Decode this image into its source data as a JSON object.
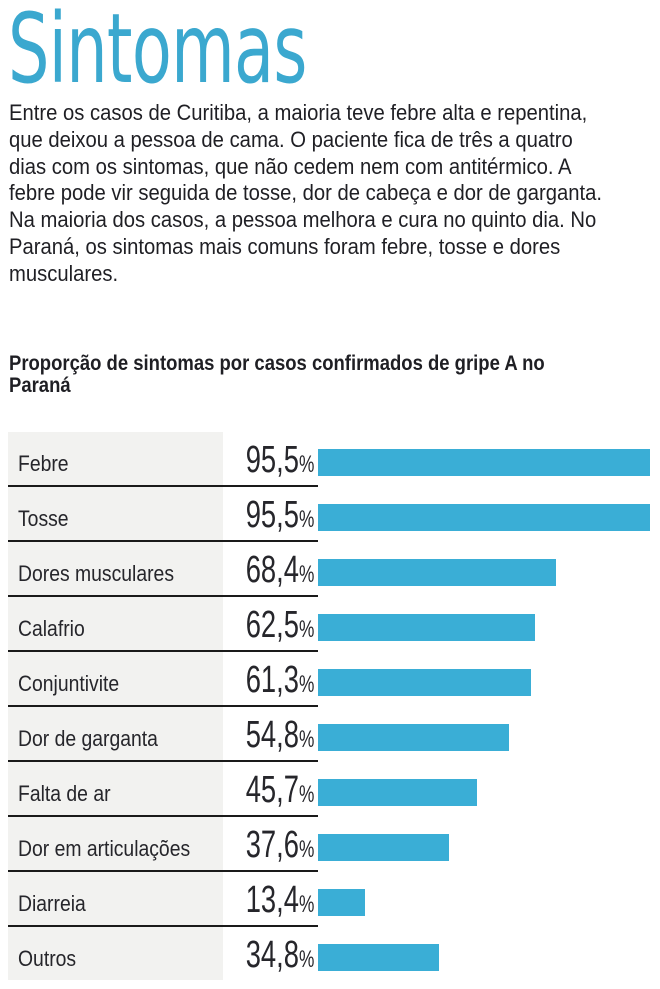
{
  "header": {
    "title": "Sintomas",
    "lead": "Entre os casos de Curitiba, a maioria teve febre alta e repentina, que deixou a pessoa de cama. O paciente fica de três a quatro dias com os sintomas, que não cedem nem com antitérmico. A febre pode vir seguida de tosse, dor de cabeça e dor de garganta. Na maioria dos casos, a pessoa melhora e cura no quinto dia. No Paraná, os sintomas mais comuns foram febre, tosse e dores musculares.",
    "lead_lines": [
      "Entre os casos de Curitiba, a maioria teve febre alta e repentina,",
      "que deixou a pessoa de cama. O paciente fica de três a quatro",
      "dias com os sintomas, que não cedem nem com antitérmico. A",
      "febre pode vir seguida de tosse, dor de cabeça e dor de garganta.",
      "Na maioria dos casos, a pessoa melhora e cura no quinto dia. No",
      "Paraná, os sintomas mais comuns foram febre, tosse e dores",
      "musculares."
    ]
  },
  "chart_title_lines": [
    "Proporção de sintomas por casos confirmados de gripe A no",
    "Paraná"
  ],
  "colors": {
    "title": "#3ba8cf",
    "bar": "#3aaed6",
    "label_bg": "#f2f2f0",
    "text": "#26262b",
    "divider": "#1a1a1a"
  },
  "rows": [
    {
      "label": "Febre",
      "value_num": "95,5",
      "pct": "%",
      "value": 95.5
    },
    {
      "label": "Tosse",
      "value_num": "95,5",
      "pct": "%",
      "value": 95.5
    },
    {
      "label": "Dores musculares",
      "value_num": "68,4",
      "pct": "%",
      "value": 68.4
    },
    {
      "label": "Calafrio",
      "value_num": "62,5",
      "pct": "%",
      "value": 62.5
    },
    {
      "label": "Conjuntivite",
      "value_num": "61,3",
      "pct": "%",
      "value": 61.3
    },
    {
      "label": "Dor de garganta",
      "value_num": "54,8",
      "pct": "%",
      "value": 54.8
    },
    {
      "label": "Falta de ar",
      "value_num": "45,7",
      "pct": "%",
      "value": 45.7
    },
    {
      "label": "Dor em articulações",
      "value_num": "37,6",
      "pct": "%",
      "value": 37.6
    },
    {
      "label": "Diarreia",
      "value_num": "13,4",
      "pct": "%",
      "value": 13.4
    },
    {
      "label": "Outros",
      "value_num": "34,8",
      "pct": "%",
      "value": 34.8
    }
  ],
  "chart_data": {
    "type": "bar",
    "orientation": "horizontal",
    "title": "Proporção de sintomas por casos confirmados de gripe A no Paraná",
    "xlabel": "",
    "ylabel": "",
    "unit": "%",
    "categories": [
      "Febre",
      "Tosse",
      "Dores musculares",
      "Calafrio",
      "Conjuntivite",
      "Dor de garganta",
      "Falta de ar",
      "Dor em articulações",
      "Diarreia",
      "Outros"
    ],
    "values": [
      95.5,
      95.5,
      68.4,
      62.5,
      61.3,
      54.8,
      45.7,
      37.6,
      13.4,
      34.8
    ],
    "data_labels": [
      "95,5%",
      "95,5%",
      "68,4%",
      "62,5%",
      "61,3%",
      "54,8%",
      "45,7%",
      "37,6%",
      "13,4%",
      "34,8%"
    ],
    "xlim": [
      0,
      95.5
    ],
    "grid": false,
    "legend": null
  }
}
